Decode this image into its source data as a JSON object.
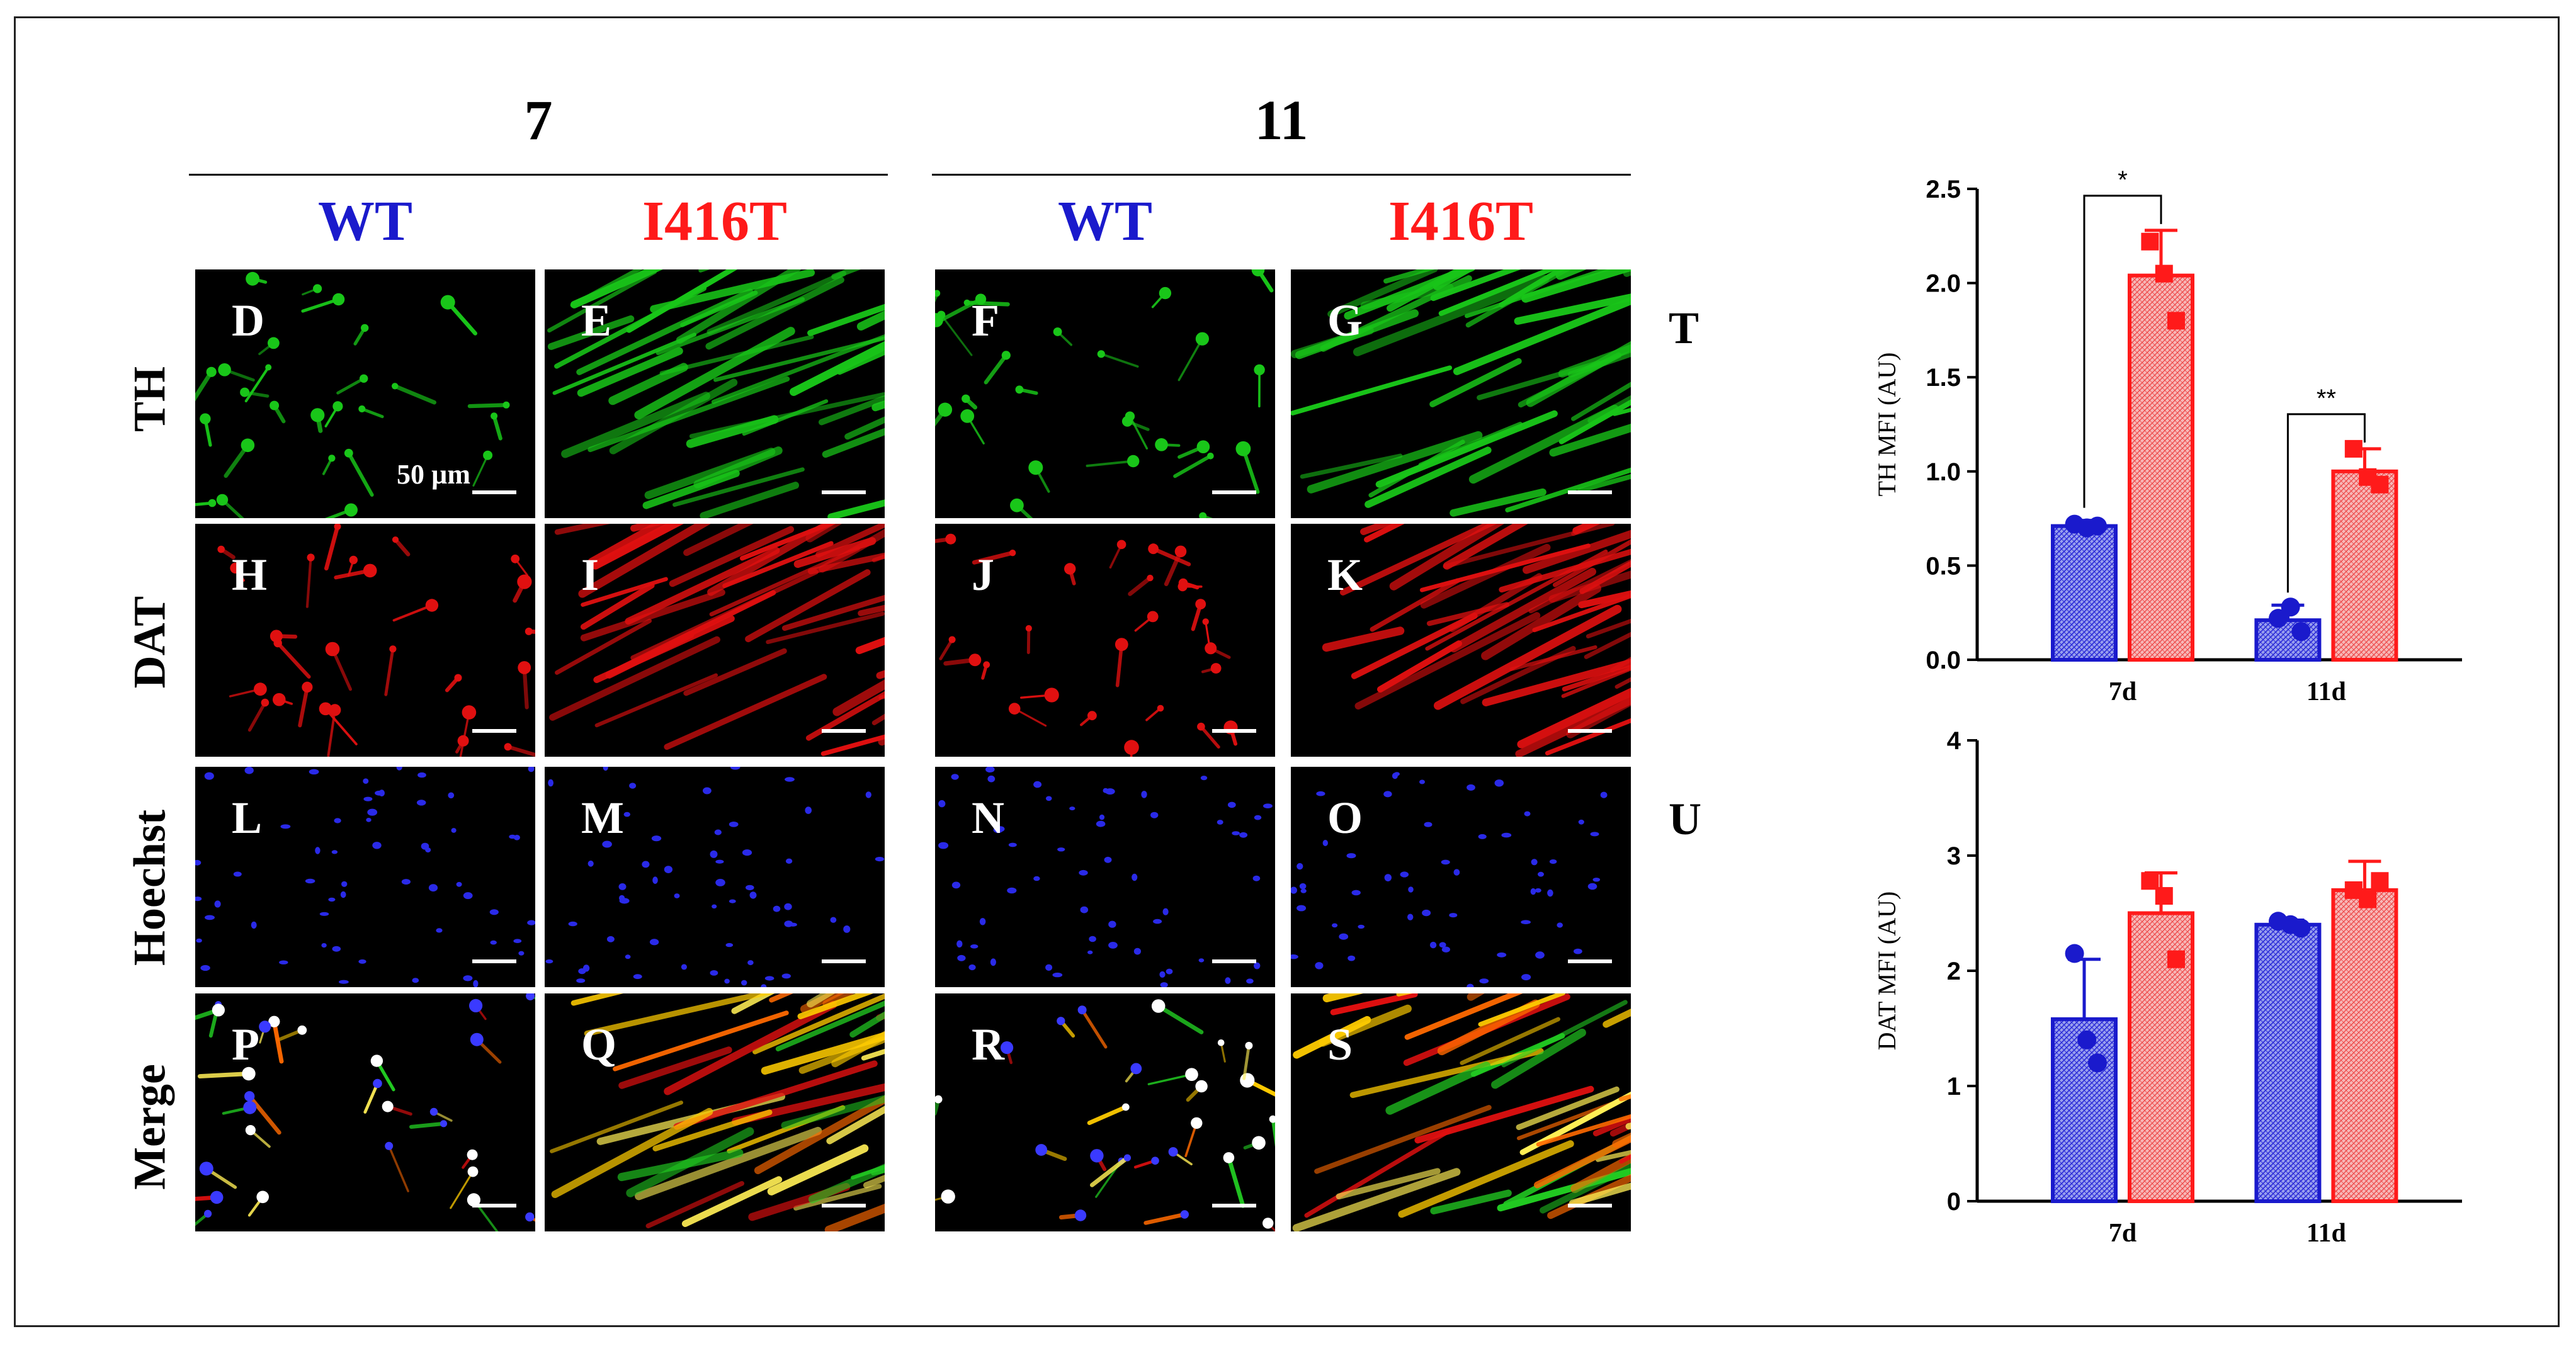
{
  "groups": {
    "g7": "7",
    "g11": "11"
  },
  "columns": [
    {
      "label": "WT",
      "color": "#1a1acc"
    },
    {
      "label": "I416T",
      "color": "#ff1a1a"
    },
    {
      "label": "WT",
      "color": "#1a1acc"
    },
    {
      "label": "I416T",
      "color": "#ff1a1a"
    }
  ],
  "rows": [
    "TH",
    "DAT",
    "Hoechst",
    "Merge"
  ],
  "panel_letters": [
    [
      "D",
      "E",
      "F",
      "G"
    ],
    [
      "H",
      "I",
      "J",
      "K"
    ],
    [
      "L",
      "M",
      "N",
      "O"
    ],
    [
      "P",
      "Q",
      "R",
      "S"
    ]
  ],
  "scale_text": "50 µm",
  "side_labels": {
    "t": "T",
    "u": "U"
  },
  "colors": {
    "wt": "#1a1acc",
    "i416t": "#ff1a1a",
    "wt_fill": "#7f86e6",
    "i416t_fill": "#f4a4a4",
    "th": "#19c619",
    "dat": "#e01010",
    "hoechst": "#1a1ae0"
  },
  "chart_data": [
    {
      "type": "bar",
      "ylabel": "TH MFI (AU)",
      "categories": [
        "7d",
        "11d"
      ],
      "ylim": [
        0,
        2.5
      ],
      "yticks": [
        "0.0",
        "0.5",
        "1.0",
        "1.5",
        "2.0",
        "2.5"
      ],
      "series": [
        {
          "values": [
            0.71,
            0.21
          ],
          "errors": [
            0.03,
            0.08
          ],
          "points": [
            [
              0.72,
              0.7,
              0.71
            ],
            [
              0.22,
              0.28,
              0.15
            ]
          ]
        },
        {
          "values": [
            2.04,
            1.0
          ],
          "errors": [
            0.24,
            0.12
          ],
          "points": [
            [
              2.22,
              2.05,
              1.8
            ],
            [
              1.12,
              0.97,
              0.93
            ]
          ]
        }
      ],
      "annotations": [
        {
          "text": "*",
          "between": [
            0,
            0
          ]
        },
        {
          "text": "**",
          "between": [
            1,
            1
          ]
        }
      ]
    },
    {
      "type": "bar",
      "ylabel": "DAT MFI (AU)",
      "categories": [
        "7d",
        "11d"
      ],
      "ylim": [
        0,
        4
      ],
      "yticks": [
        "0",
        "1",
        "2",
        "3",
        "4"
      ],
      "series": [
        {
          "values": [
            1.58,
            2.4
          ],
          "errors": [
            0.52,
            0.04
          ],
          "points": [
            [
              2.15,
              1.4,
              1.2
            ],
            [
              2.43,
              2.4,
              2.37
            ]
          ]
        },
        {
          "values": [
            2.5,
            2.7
          ],
          "errors": [
            0.35,
            0.25
          ],
          "points": [
            [
              2.78,
              2.65,
              2.1
            ],
            [
              2.7,
              2.62,
              2.78
            ]
          ]
        }
      ],
      "annotations": []
    }
  ]
}
